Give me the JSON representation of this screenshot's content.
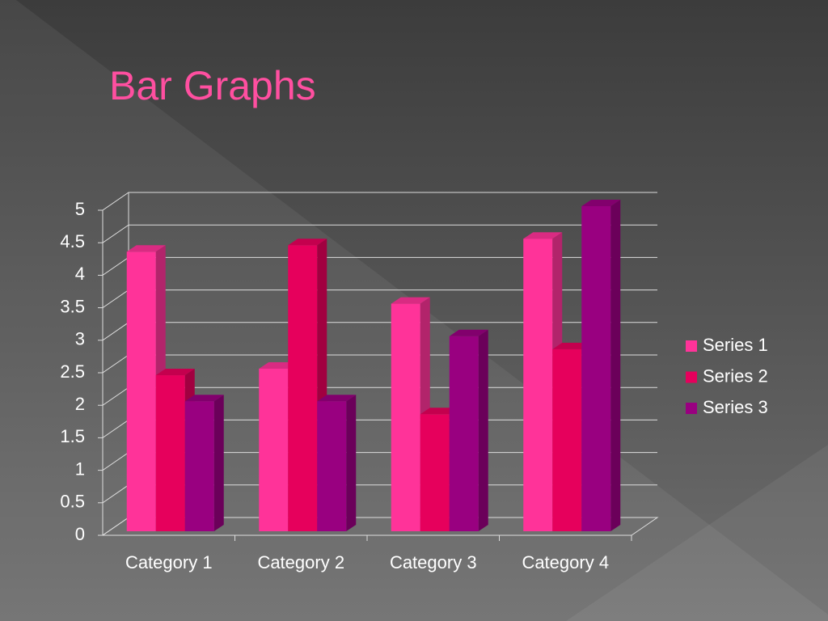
{
  "chart_data": {
    "type": "bar3d",
    "title": "Bar Graphs",
    "categories": [
      "Category 1",
      "Category 2",
      "Category 3",
      "Category 4"
    ],
    "series": [
      {
        "name": "Series 1",
        "color": "#ff3399",
        "values": [
          4.3,
          2.5,
          3.5,
          4.5
        ]
      },
      {
        "name": "Series 2",
        "color": "#e6005c",
        "values": [
          2.4,
          4.4,
          1.8,
          2.8
        ]
      },
      {
        "name": "Series 3",
        "color": "#990080",
        "values": [
          2,
          2,
          3,
          5
        ]
      }
    ],
    "ylim": [
      0,
      5
    ],
    "yticks": [
      0,
      0.5,
      1,
      1.5,
      2,
      2.5,
      3,
      3.5,
      4,
      4.5,
      5
    ],
    "grid": true,
    "legend": "right"
  }
}
